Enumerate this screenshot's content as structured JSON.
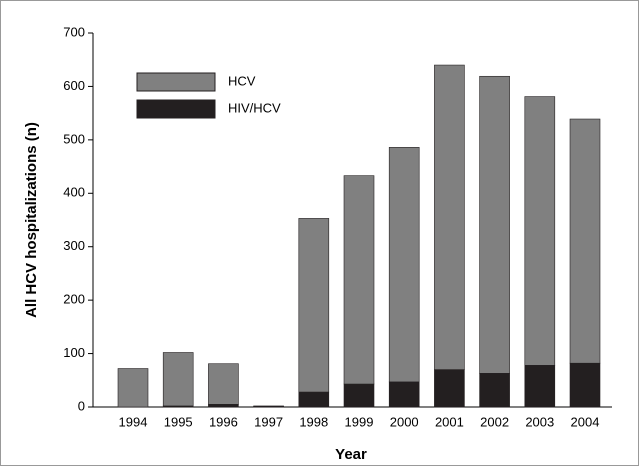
{
  "chart_data": {
    "type": "stacked_bar",
    "x_label": "Year",
    "y_label": "All HCV hospitalizations (n)",
    "categories": [
      "1994",
      "1995",
      "1996",
      "1997",
      "1998",
      "1999",
      "2000",
      "2001",
      "2002",
      "2003",
      "2004"
    ],
    "series": [
      {
        "name": "HIV/HCV",
        "color": "#231f20",
        "values": [
          0,
          2,
          5,
          1,
          28,
          43,
          47,
          70,
          63,
          78,
          82
        ]
      },
      {
        "name": "HCV",
        "color": "#808080",
        "values": [
          72,
          100,
          76,
          1,
          325,
          390,
          439,
          570,
          556,
          503,
          457
        ]
      }
    ],
    "legend_order": [
      "HCV",
      "HIV/HCV"
    ],
    "ylim": [
      0,
      700
    ],
    "yticks": [
      0,
      100,
      200,
      300,
      400,
      500,
      600,
      700
    ]
  }
}
